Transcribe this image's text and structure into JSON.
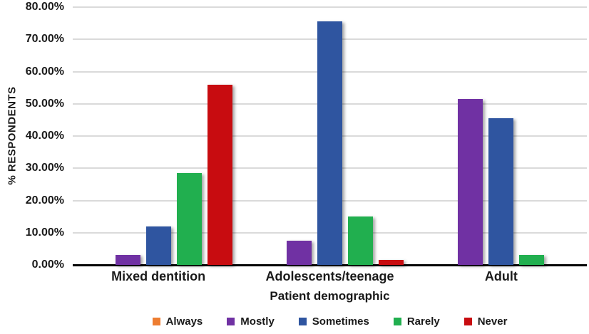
{
  "chart_data": {
    "type": "bar",
    "title": "",
    "categories": [
      "Mixed dentition",
      "Adolescents/teenage",
      "Adult"
    ],
    "series": [
      {
        "name": "Always",
        "color": "#ED7D31",
        "values": [
          0,
          0,
          0
        ]
      },
      {
        "name": "Mostly",
        "color": "#7031A3",
        "values": [
          3,
          7.5,
          51.5
        ]
      },
      {
        "name": "Sometimes",
        "color": "#2F55A0",
        "values": [
          12,
          75.5,
          45.5
        ]
      },
      {
        "name": "Rarely",
        "color": "#21AF4F",
        "values": [
          28.5,
          15,
          3
        ]
      },
      {
        "name": "Never",
        "color": "#C80C10",
        "values": [
          56,
          1.5,
          0
        ]
      }
    ],
    "xlabel": "Patient demographic",
    "ylabel": "% RESPONDENTS",
    "ylim": [
      0,
      80
    ],
    "ytick_step": 10,
    "ytick_labels": [
      "0.00%",
      "10.00%",
      "20.00%",
      "30.00%",
      "40.00%",
      "50.00%",
      "60.00%",
      "70.00%",
      "80.00%"
    ],
    "grid": "horizontal",
    "legend_position": "bottom"
  },
  "colors": {
    "gridline": "#DADADA",
    "axis": "#000000",
    "text": "#1A1A1A",
    "background": "#FFFFFF"
  }
}
